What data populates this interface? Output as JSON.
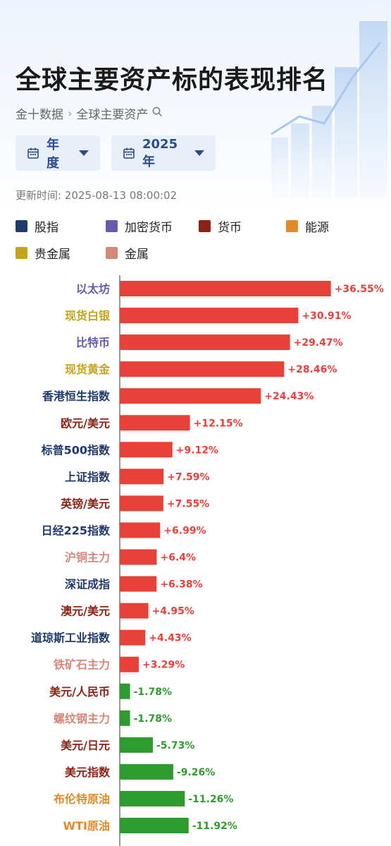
{
  "header": {
    "title": "全球主要资产标的表现排名",
    "breadcrumb": [
      "金十数据",
      "全球主要资产"
    ],
    "search_icon": "search-icon"
  },
  "filters": [
    {
      "label": "年度",
      "icon": "calendar-icon"
    },
    {
      "label": "2025年",
      "icon": "calendar-icon"
    }
  ],
  "updated": "更新时间: 2025-08-13 08:00:02",
  "legend": [
    {
      "label": "股指",
      "color": "#1f3a6b"
    },
    {
      "label": "加密货币",
      "color": "#6a5aad"
    },
    {
      "label": "货币",
      "color": "#8b2416"
    },
    {
      "label": "能源",
      "color": "#e08a2a"
    },
    {
      "label": "贵金属",
      "color": "#c4a419"
    },
    {
      "label": "金属",
      "color": "#d48878"
    }
  ],
  "colors": {
    "positive": "#e8413a",
    "negative": "#2e9b2e"
  },
  "chart_data": {
    "type": "bar",
    "orientation": "horizontal",
    "categories": [
      "以太坊",
      "现货白银",
      "比特币",
      "现货黄金",
      "香港恒生指数",
      "欧元/美元",
      "标普500指数",
      "上证指数",
      "英镑/美元",
      "日经225指数",
      "沪铜主力",
      "深证成指",
      "澳元/美元",
      "道琼斯工业指数",
      "铁矿石主力",
      "美元/人民币",
      "螺纹钢主力",
      "美元/日元",
      "美元指数",
      "布伦特原油",
      "WTI原油"
    ],
    "category_class": [
      "加密货币",
      "贵金属",
      "加密货币",
      "贵金属",
      "股指",
      "货币",
      "股指",
      "股指",
      "货币",
      "股指",
      "金属",
      "股指",
      "货币",
      "股指",
      "金属",
      "货币",
      "金属",
      "货币",
      "货币",
      "能源",
      "能源"
    ],
    "values": [
      36.55,
      30.91,
      29.47,
      28.46,
      24.43,
      12.15,
      9.12,
      7.59,
      7.55,
      6.99,
      6.4,
      6.38,
      4.95,
      4.43,
      3.29,
      -1.78,
      -1.78,
      -5.73,
      -9.26,
      -11.26,
      -11.92
    ],
    "value_labels": [
      "+36.55%",
      "+30.91%",
      "+29.47%",
      "+28.46%",
      "+24.43%",
      "+12.15%",
      "+9.12%",
      "+7.59%",
      "+7.55%",
      "+6.99%",
      "+6.4%",
      "+6.38%",
      "+4.95%",
      "+4.43%",
      "+3.29%",
      "-1.78%",
      "-1.78%",
      "-5.73%",
      "-9.26%",
      "-11.26%",
      "-11.92%"
    ],
    "unit": "%"
  }
}
